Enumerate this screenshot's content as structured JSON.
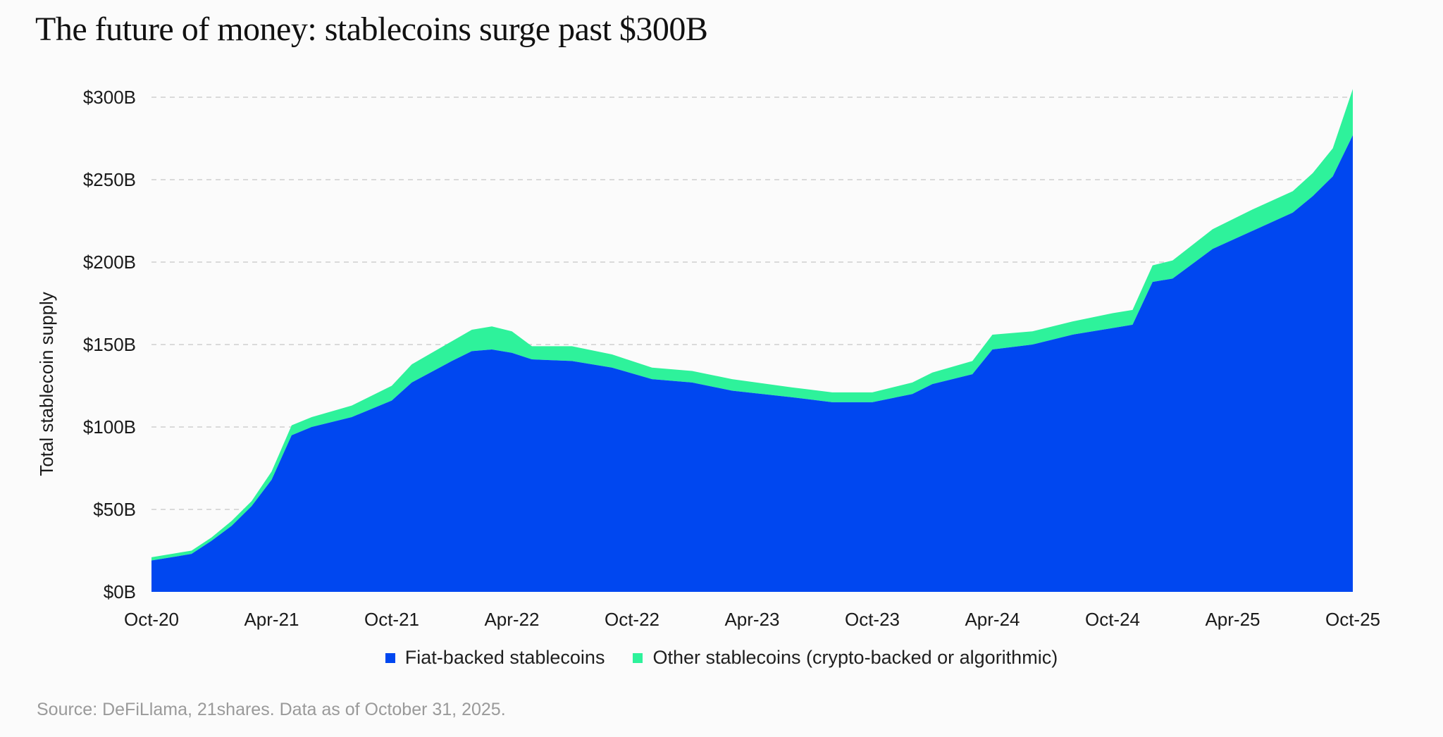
{
  "title": "The future of money: stablecoins surge past $300B",
  "source": "Source: DeFiLlama, 21shares. Data as of October 31, 2025.",
  "colors": {
    "fiat": "#0047f0",
    "other": "#2ef29b",
    "grid": "#cfcfcf",
    "background": "#fbfbfb"
  },
  "chart_data": {
    "type": "area",
    "stacked": true,
    "ylabel": "Total stablecoin supply",
    "xlabel": "",
    "ylim": [
      0,
      300
    ],
    "y_unit": "$B",
    "y_ticks": [
      {
        "value": 0,
        "label": "$0B"
      },
      {
        "value": 50,
        "label": "$50B"
      },
      {
        "value": 100,
        "label": "$100B"
      },
      {
        "value": 150,
        "label": "$150B"
      },
      {
        "value": 200,
        "label": "$200B"
      },
      {
        "value": 250,
        "label": "$250B"
      },
      {
        "value": 300,
        "label": "$300B"
      }
    ],
    "grid": "horizontal dashed",
    "legend_position": "bottom",
    "x_ticks": [
      "Oct-20",
      "Apr-21",
      "Oct-21",
      "Apr-22",
      "Oct-22",
      "Apr-23",
      "Oct-23",
      "Apr-24",
      "Oct-24",
      "Apr-25",
      "Oct-25"
    ],
    "x": [
      "2020-10",
      "2020-12",
      "2021-01",
      "2021-02",
      "2021-03",
      "2021-04",
      "2021-05",
      "2021-06",
      "2021-08",
      "2021-10",
      "2021-11",
      "2022-01",
      "2022-02",
      "2022-03",
      "2022-04",
      "2022-05",
      "2022-07",
      "2022-09",
      "2022-11",
      "2023-01",
      "2023-03",
      "2023-06",
      "2023-08",
      "2023-10",
      "2023-12",
      "2024-01",
      "2024-03",
      "2024-04",
      "2024-06",
      "2024-08",
      "2024-10",
      "2024-11",
      "2024-12",
      "2025-01",
      "2025-03",
      "2025-05",
      "2025-07",
      "2025-08",
      "2025-09",
      "2025-10"
    ],
    "series": [
      {
        "name": "Fiat-backed stablecoins",
        "values": [
          19,
          23,
          31,
          40,
          52,
          68,
          95,
          100,
          106,
          116,
          127,
          140,
          146,
          147,
          145,
          141,
          140,
          136,
          129,
          127,
          122,
          118,
          115,
          115,
          120,
          126,
          132,
          147,
          150,
          156,
          160,
          162,
          188,
          190,
          208,
          219,
          230,
          240,
          252,
          277
        ]
      },
      {
        "name": "Other stablecoins (crypto-backed or algorithmic)",
        "values": [
          2,
          2,
          2,
          3,
          3,
          5,
          6,
          6,
          7,
          9,
          11,
          12,
          13,
          14,
          13,
          8,
          9,
          8,
          7,
          7,
          7,
          6,
          6,
          6,
          7,
          7,
          8,
          9,
          8,
          8,
          9,
          9,
          10,
          11,
          12,
          13,
          13,
          14,
          17,
          28
        ]
      }
    ]
  }
}
